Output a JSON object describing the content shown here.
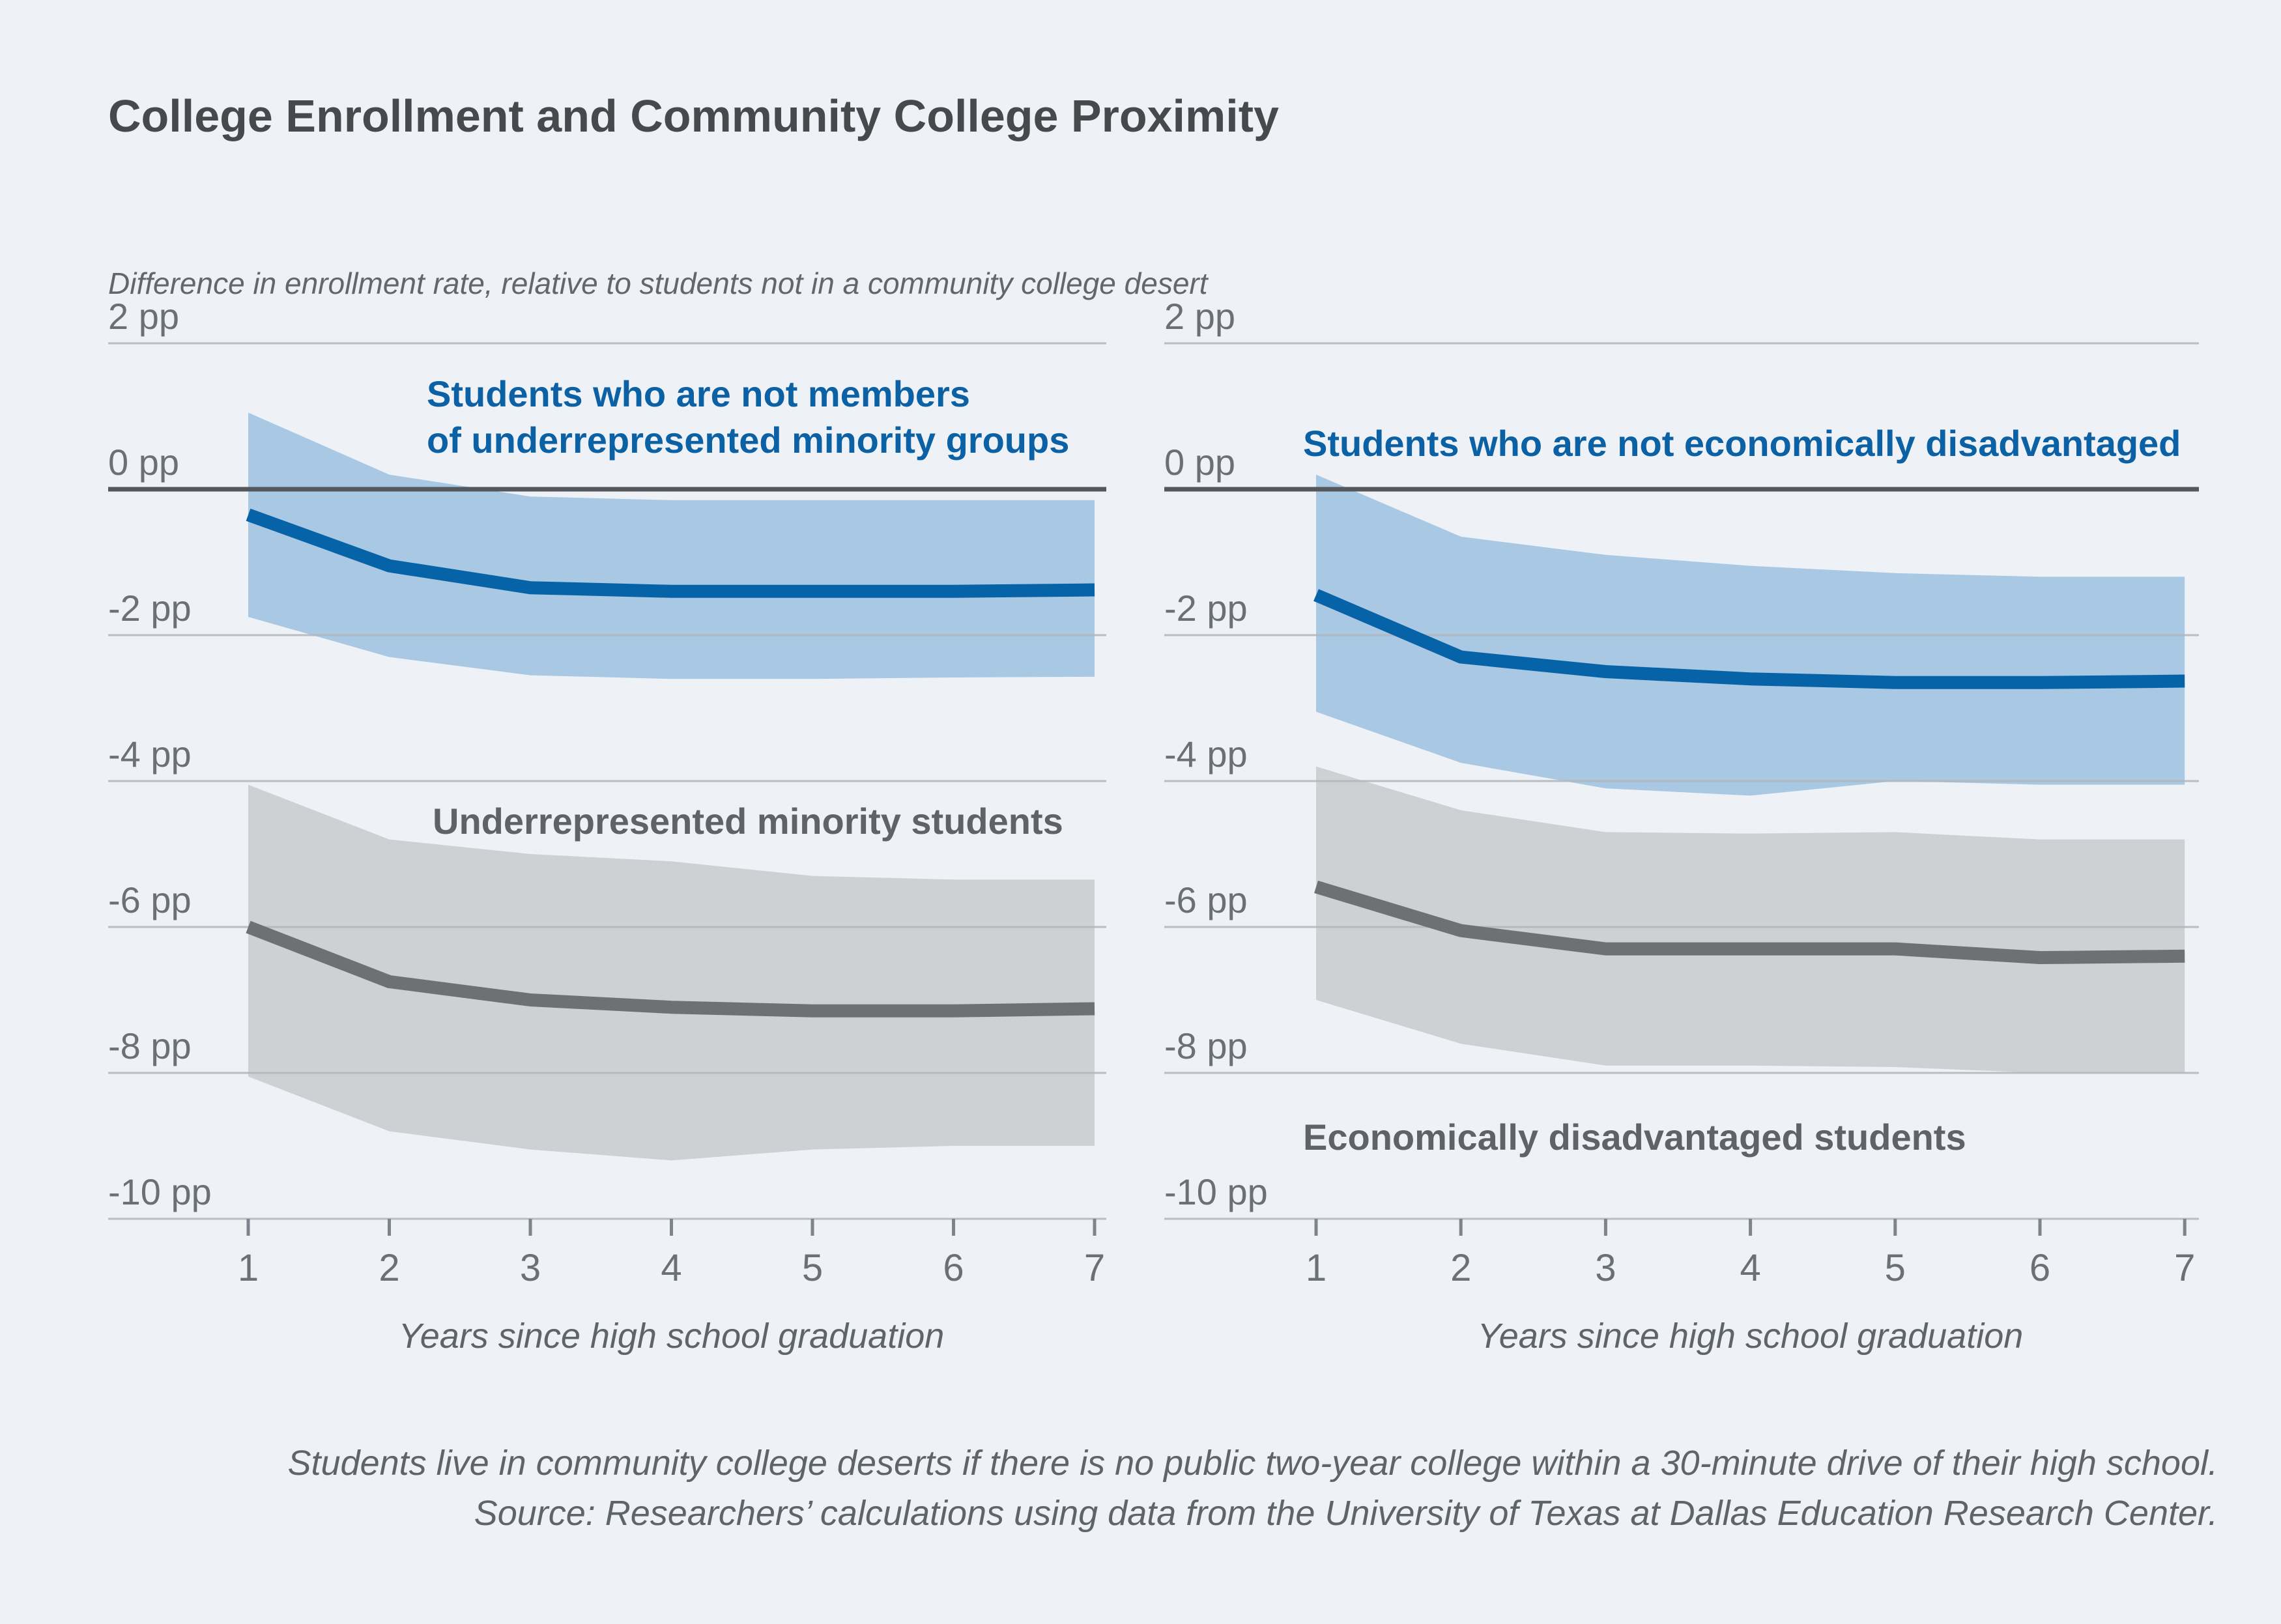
{
  "page": {
    "title": "College Enrollment and Community College Proximity",
    "subtitle": "Difference in enrollment rate, relative to students not in a community college desert",
    "footnote_line1": "Students live in community college deserts if there is no public two-year college within a 30-minute drive of their high school.",
    "footnote_line2": "Source: Researchers’ calculations using data from the University of Texas at Dallas Education Research Center."
  },
  "colors": {
    "background": "#eef2f7",
    "grid": "#b3b8bd",
    "zero_line": "#54585c",
    "axis_text": "#6b7074",
    "tick_mark": "#7e848b",
    "title_text": "#47494d",
    "muted_text": "#5f646a"
  },
  "chart_data": [
    {
      "type": "line",
      "panel": "left",
      "x": [
        1,
        2,
        3,
        4,
        5,
        6,
        7
      ],
      "x_tick_labels": [
        "1",
        "2",
        "3",
        "4",
        "5",
        "6",
        "7"
      ],
      "xlabel": "Years since high school graduation",
      "ylabel": "Difference in enrollment rate (percentage points)",
      "ylim": [
        -10.6,
        2
      ],
      "yticks": [
        2,
        0,
        -2,
        -4,
        -6,
        -8,
        -10
      ],
      "ytick_labels": [
        "2 pp",
        "0 pp",
        "-2 pp",
        "-4 pp",
        "-6 pp",
        "-8 pp",
        "-10 pp"
      ],
      "grid": true,
      "legend_position": "inline-labels",
      "series": [
        {
          "name": "Students who are not members\nof underrepresented minority groups",
          "line_color": "#0763a7",
          "band_color": "#a8c8e3",
          "label_color": "#0b61a4",
          "values": [
            -0.35,
            -1.05,
            -1.35,
            -1.4,
            -1.4,
            -1.4,
            -1.38
          ],
          "band_upper": [
            1.05,
            0.2,
            -0.1,
            -0.15,
            -0.15,
            -0.15,
            -0.15
          ],
          "band_lower": [
            -1.75,
            -2.3,
            -2.55,
            -2.6,
            -2.6,
            -2.58,
            -2.57
          ]
        },
        {
          "name": "Underrepresented minority students",
          "line_color": "#6e7074",
          "band_color": "#ced0d4",
          "label_color": "#5f6367",
          "values": [
            -6.0,
            -6.75,
            -7.0,
            -7.1,
            -7.15,
            -7.15,
            -7.12
          ],
          "band_upper": [
            -4.05,
            -4.8,
            -5.0,
            -5.1,
            -5.3,
            -5.35,
            -5.35
          ],
          "band_lower": [
            -8.05,
            -8.8,
            -9.05,
            -9.2,
            -9.05,
            -9.0,
            -9.0
          ]
        }
      ]
    },
    {
      "type": "line",
      "panel": "right",
      "x": [
        1,
        2,
        3,
        4,
        5,
        6,
        7
      ],
      "x_tick_labels": [
        "1",
        "2",
        "3",
        "4",
        "5",
        "6",
        "7"
      ],
      "xlabel": "Years since high school graduation",
      "ylabel": "Difference in enrollment rate (percentage points)",
      "ylim": [
        -10.6,
        2
      ],
      "yticks": [
        2,
        0,
        -2,
        -4,
        -6,
        -8,
        -10
      ],
      "ytick_labels": [
        "2 pp",
        "0 pp",
        "-2 pp",
        "-4 pp",
        "-6 pp",
        "-8 pp",
        "-10 pp"
      ],
      "grid": true,
      "legend_position": "inline-labels",
      "series": [
        {
          "name": "Students who are not economically disadvantaged",
          "line_color": "#0763a7",
          "band_color": "#a8c8e3",
          "label_color": "#0b61a4",
          "values": [
            -1.45,
            -2.3,
            -2.5,
            -2.6,
            -2.65,
            -2.65,
            -2.63
          ],
          "band_upper": [
            0.2,
            -0.65,
            -0.9,
            -1.05,
            -1.15,
            -1.2,
            -1.2
          ],
          "band_lower": [
            -3.05,
            -3.75,
            -4.1,
            -4.2,
            -4.0,
            -4.05,
            -4.05
          ]
        },
        {
          "name": "Economically disadvantaged students",
          "line_color": "#6e7074",
          "band_color": "#ced0d4",
          "label_color": "#5f6367",
          "values": [
            -5.45,
            -6.05,
            -6.3,
            -6.3,
            -6.3,
            -6.42,
            -6.4
          ],
          "band_upper": [
            -3.8,
            -4.4,
            -4.7,
            -4.72,
            -4.7,
            -4.8,
            -4.8
          ],
          "band_lower": [
            -7.0,
            -7.6,
            -7.9,
            -7.9,
            -7.92,
            -8.0,
            -8.0
          ]
        }
      ]
    }
  ]
}
